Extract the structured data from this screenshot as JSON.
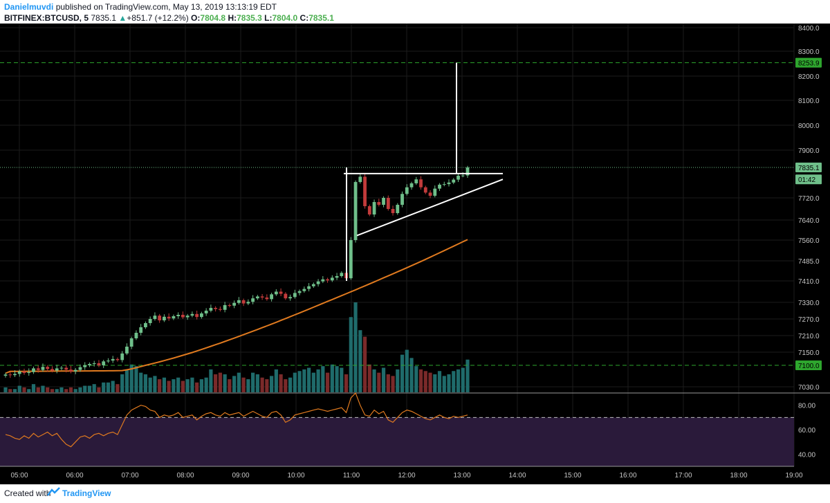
{
  "header": {
    "author": "Danielmuvdi",
    "published_text": "published on TradingView.com, May 13, 2019 13:13:19 EDT",
    "symbol": "BITFINEX:BTCUSD, 5",
    "last": "7835.1",
    "change": "+851.7 (+12.2%)",
    "o_label": "O:",
    "o_value": "7804.8",
    "h_label": "H:",
    "h_value": "7835.3",
    "l_label": "L:",
    "l_value": "7804.0",
    "c_label": "C:",
    "c_value": "7835.1"
  },
  "footer": {
    "created_with": "Created with",
    "brand": "TradingView"
  },
  "colors": {
    "background": "#000000",
    "grid": "#1c1c1c",
    "up": "#6fbf8a",
    "down": "#c23b3b",
    "ma": "#e07a1f",
    "level": "#2ea62e",
    "rsi_line": "#e07a1f",
    "rsi_band": "#2a1a3a",
    "pattern": "#ffffff",
    "axis_text": "#c8c8c8"
  },
  "chart_data": [
    {
      "type": "candlestick",
      "panel": "price",
      "interval": "5",
      "ylim": [
        7000,
        8400
      ],
      "y_tick_labels": [
        "8400.0",
        "8300.0",
        "8200.0",
        "8100.0",
        "8000.0",
        "7900.0",
        "7720.0",
        "7640.0",
        "7560.0",
        "7485.0",
        "7410.0",
        "7330.0",
        "7270.0",
        "7210.0",
        "7150.0",
        "7030.0"
      ],
      "x_tick_labels": [
        "05:00",
        "06:00",
        "07:00",
        "08:00",
        "09:00",
        "10:00",
        "11:00",
        "12:00",
        "13:00",
        "14:00",
        "15:00",
        "16:00",
        "17:00",
        "18:00",
        "19:00"
      ],
      "price_labels": [
        {
          "text": "8253.9",
          "value": 8253.9,
          "color": "#2ea62e"
        },
        {
          "text": "7835.1",
          "value": 7835.1,
          "color": "#6fbf8a"
        },
        {
          "text": "01:42",
          "value": 7790,
          "color": "#6fbf8a"
        },
        {
          "text": "7100.0",
          "value": 7100.0,
          "color": "#2ea62e"
        }
      ],
      "horizontal_levels": [
        8253.9,
        7100.0
      ],
      "last_price": 7835.1,
      "closes": [
        7070,
        7068,
        7072,
        7080,
        7075,
        7078,
        7090,
        7085,
        7095,
        7088,
        7083,
        7090,
        7092,
        7086,
        7080,
        7085,
        7094,
        7100,
        7105,
        7108,
        7100,
        7115,
        7118,
        7124,
        7120,
        7145,
        7170,
        7200,
        7220,
        7240,
        7255,
        7270,
        7282,
        7265,
        7278,
        7272,
        7280,
        7285,
        7276,
        7282,
        7288,
        7277,
        7290,
        7300,
        7310,
        7306,
        7303,
        7320,
        7318,
        7328,
        7338,
        7326,
        7332,
        7345,
        7352,
        7348,
        7342,
        7360,
        7370,
        7362,
        7345,
        7350,
        7365,
        7372,
        7380,
        7390,
        7398,
        7408,
        7416,
        7412,
        7422,
        7428,
        7440,
        7420,
        7560,
        7780,
        7800,
        7690,
        7660,
        7705,
        7695,
        7720,
        7680,
        7665,
        7695,
        7735,
        7760,
        7775,
        7790,
        7760,
        7740,
        7728,
        7755,
        7770,
        7772,
        7778,
        7789,
        7804,
        7804.8,
        7835.1
      ],
      "moving_average": {
        "name": "",
        "start": 7080,
        "end": 7562
      }
    },
    {
      "type": "line",
      "panel": "rsi",
      "ylim": [
        30,
        90
      ],
      "y_tick_labels": [
        "80.00",
        "60.00",
        "40.00"
      ],
      "bands": [
        70,
        30
      ],
      "values": [
        56,
        55,
        53,
        52,
        55,
        53,
        57,
        54,
        56,
        58,
        55,
        57,
        52,
        48,
        46,
        50,
        54,
        55,
        53,
        56,
        57,
        55,
        57,
        58,
        56,
        64,
        72,
        76,
        78,
        80,
        79,
        76,
        75,
        70,
        72,
        71,
        72,
        74,
        70,
        71,
        72,
        68,
        71,
        73,
        74,
        72,
        71,
        74,
        72,
        73,
        74,
        71,
        73,
        75,
        73,
        71,
        70,
        74,
        75,
        72,
        66,
        68,
        72,
        73,
        74,
        75,
        76,
        77,
        76,
        75,
        76,
        77,
        78,
        74,
        86,
        90,
        80,
        72,
        71,
        76,
        73,
        75,
        68,
        66,
        70,
        74,
        76,
        75,
        73,
        71,
        69,
        68,
        70,
        72,
        70,
        69,
        71,
        70,
        71,
        72
      ]
    },
    {
      "type": "bar",
      "panel": "volume",
      "values": [
        3,
        2,
        2,
        4,
        3,
        2,
        5,
        3,
        4,
        3,
        2,
        2,
        3,
        2,
        3,
        2,
        3,
        4,
        4,
        5,
        3,
        6,
        6,
        7,
        5,
        11,
        14,
        17,
        16,
        12,
        11,
        9,
        10,
        8,
        9,
        7,
        8,
        9,
        7,
        8,
        9,
        6,
        8,
        9,
        14,
        11,
        12,
        11,
        8,
        10,
        12,
        9,
        8,
        12,
        11,
        9,
        8,
        10,
        14,
        11,
        8,
        9,
        12,
        13,
        14,
        15,
        12,
        14,
        16,
        12,
        17,
        16,
        15,
        11,
        46,
        55,
        38,
        34,
        17,
        14,
        12,
        15,
        11,
        10,
        14,
        23,
        26,
        21,
        16,
        14,
        13,
        12,
        11,
        13,
        10,
        11,
        13,
        14,
        15,
        20
      ]
    }
  ]
}
